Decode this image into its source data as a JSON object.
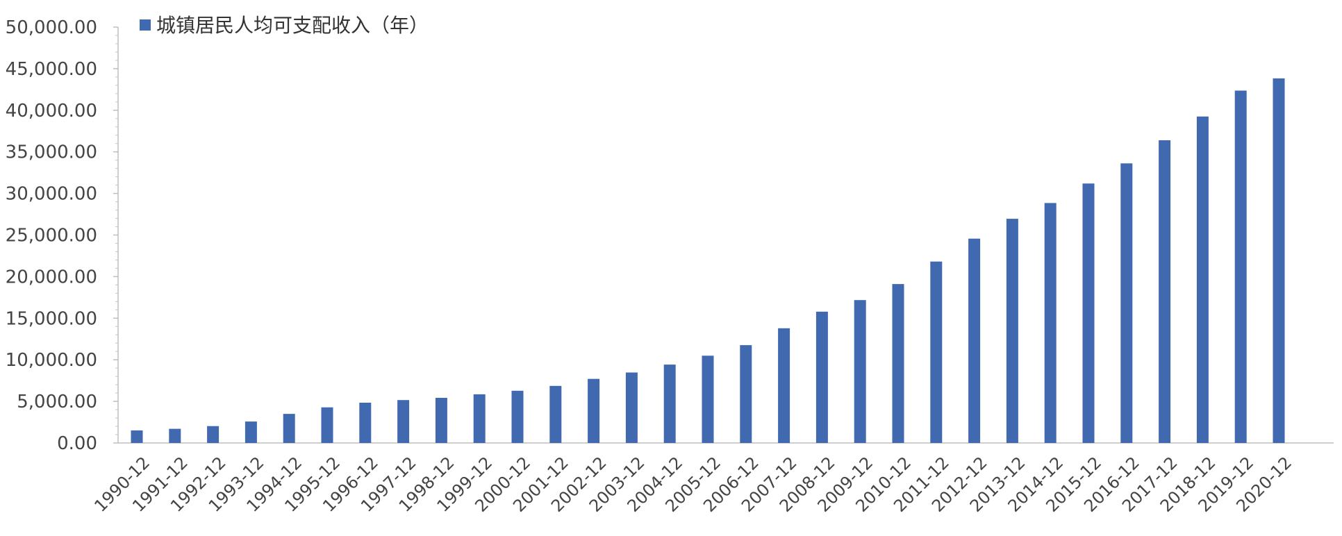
{
  "chart_data": {
    "type": "bar",
    "title": "",
    "xlabel": "",
    "ylabel": "",
    "ylim": [
      0,
      50000
    ],
    "yticks": [
      "0.00",
      "5,000.00",
      "10,000.00",
      "15,000.00",
      "20,000.00",
      "25,000.00",
      "30,000.00",
      "35,000.00",
      "40,000.00",
      "45,000.00",
      "50,000.00"
    ],
    "ytick_values": [
      0,
      5000,
      10000,
      15000,
      20000,
      25000,
      30000,
      35000,
      40000,
      45000,
      50000
    ],
    "legend": {
      "position": "top-left",
      "entries": [
        "城镇居民人均可支配收入（年）"
      ]
    },
    "bar_color": "#4169B0",
    "categories": [
      "1990-12",
      "1991-12",
      "1992-12",
      "1993-12",
      "1994-12",
      "1995-12",
      "1996-12",
      "1997-12",
      "1998-12",
      "1999-12",
      "2000-12",
      "2001-12",
      "2002-12",
      "2003-12",
      "2004-12",
      "2005-12",
      "2006-12",
      "2007-12",
      "2008-12",
      "2009-12",
      "2010-12",
      "2011-12",
      "2012-12",
      "2013-12",
      "2014-12",
      "2015-12",
      "2016-12",
      "2017-12",
      "2018-12",
      "2019-12",
      "2020-12"
    ],
    "series": [
      {
        "name": "城镇居民人均可支配收入（年）",
        "values": [
          1510,
          1700,
          2027,
          2577,
          3496,
          4283,
          4839,
          5160,
          5425,
          5854,
          6280,
          6860,
          7703,
          8472,
          9422,
          10493,
          11759,
          13786,
          15781,
          17175,
          19109,
          21810,
          24565,
          26955,
          28844,
          31195,
          33616,
          36396,
          39251,
          42359,
          43834
        ]
      }
    ]
  }
}
